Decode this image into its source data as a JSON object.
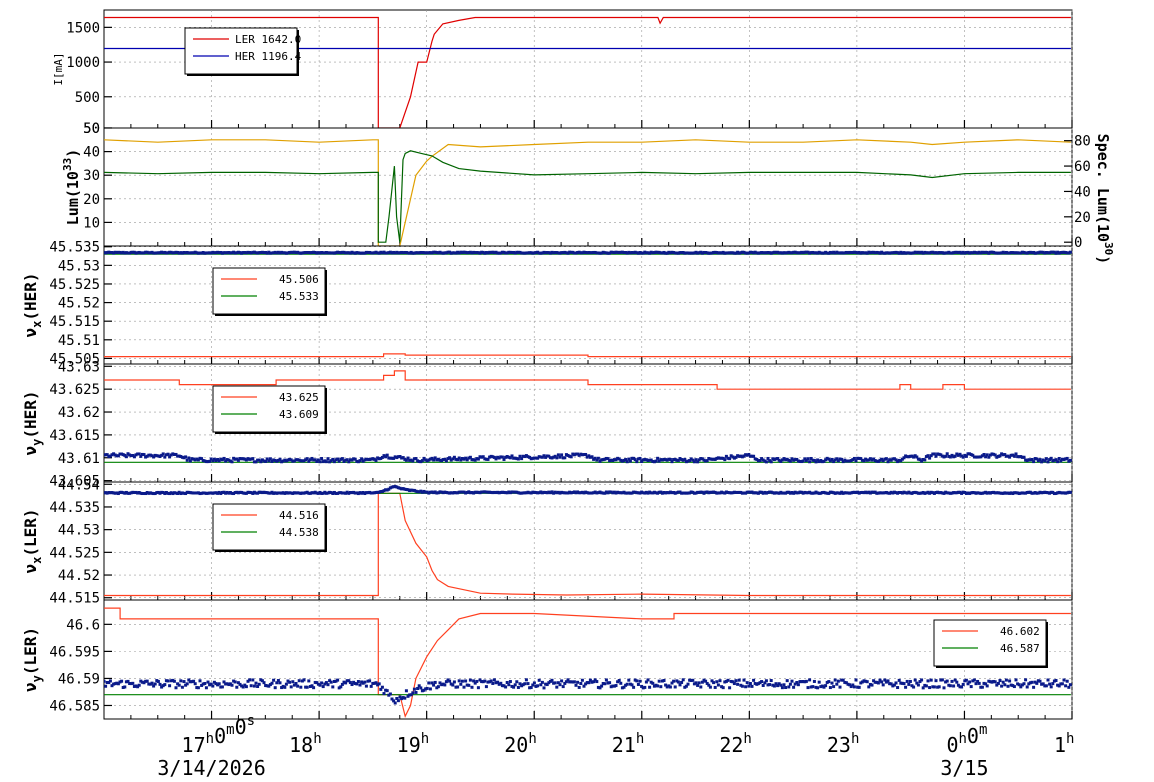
{
  "chart_data": [
    {
      "type": "line",
      "id": "current",
      "ylabel": "I[mA]",
      "ylim": [
        50,
        1750
      ],
      "yticks": [
        50,
        500,
        1000,
        1500
      ],
      "legend": {
        "position": "top-left",
        "entries": [
          {
            "name": "LER",
            "value": "1642.0",
            "color": "#e00000"
          },
          {
            "name": "HER",
            "value": "1196.4",
            "color": "#0000b0"
          }
        ]
      },
      "series": [
        {
          "name": "LER",
          "color": "#e00000",
          "x": [
            16.0,
            18.55,
            18.55,
            18.75,
            18.85,
            18.92,
            19.0,
            19.05,
            19.07,
            19.15,
            19.3,
            19.45,
            21.15,
            21.17,
            21.2,
            22.0,
            0.99
          ],
          "y": [
            1642,
            1642,
            50,
            50,
            500,
            1000,
            1000,
            1300,
            1400,
            1550,
            1600,
            1642,
            1642,
            1560,
            1642,
            1642,
            1642
          ]
        },
        {
          "name": "HER",
          "color": "#0000b0",
          "x": [
            16.0,
            0.99
          ],
          "y": [
            1196,
            1196
          ]
        }
      ]
    },
    {
      "type": "line",
      "id": "luminosity",
      "ylabel": "Lum(10",
      "ylabel_sup": "33",
      "ylabel_close": ")",
      "y2label": "Spec. Lum(10",
      "y2label_sup": "30",
      "y2label_close": ")",
      "ylim": [
        0,
        50
      ],
      "yticks": [
        10,
        20,
        30,
        40,
        50
      ],
      "y2lim": [
        -3,
        90
      ],
      "y2ticks": [
        0,
        20,
        40,
        60,
        80
      ],
      "series": [
        {
          "name": "Lum",
          "color": "#e0a000",
          "x": [
            16.0,
            16.5,
            17.0,
            17.5,
            18.0,
            18.5,
            18.55,
            18.55,
            18.75,
            18.8,
            18.9,
            19.0,
            19.05,
            19.2,
            19.5,
            20.0,
            20.5,
            21.0,
            21.5,
            22.0,
            22.5,
            23.0,
            23.5,
            23.7,
            0.0,
            0.5,
            0.99
          ],
          "y": [
            45,
            44,
            45,
            45,
            44,
            45,
            45,
            0,
            0,
            10,
            30,
            36,
            38,
            43,
            42,
            43,
            44,
            44,
            45,
            44,
            44,
            45,
            44,
            43,
            44,
            45,
            44
          ]
        },
        {
          "name": "Spec",
          "color": "#006400",
          "axis": "y2",
          "x": [
            16.0,
            16.5,
            17.0,
            17.5,
            18.0,
            18.5,
            18.55,
            18.55,
            18.62,
            18.65,
            18.7,
            18.72,
            18.75,
            18.78,
            18.8,
            18.85,
            18.95,
            19.05,
            19.15,
            19.3,
            19.5,
            20.0,
            20.5,
            21.0,
            21.5,
            22.0,
            22.5,
            23.0,
            23.5,
            23.7,
            0.0,
            0.5,
            0.99
          ],
          "y": [
            55,
            54,
            55,
            55,
            54,
            55,
            55,
            0,
            0,
            20,
            60,
            20,
            0,
            65,
            70,
            72,
            70,
            68,
            63,
            58,
            56,
            53,
            54,
            55,
            54,
            55,
            55,
            55,
            53,
            51,
            54,
            55,
            55
          ]
        }
      ]
    },
    {
      "type": "line",
      "id": "nux-her",
      "ylabel": "νx(HER)",
      "ylim": [
        45.5035,
        45.5352
      ],
      "yticks": [
        45.505,
        45.51,
        45.515,
        45.52,
        45.525,
        45.53,
        45.535
      ],
      "legend": {
        "position": "top-left",
        "entries": [
          {
            "value": "45.506",
            "color": "#ff4020"
          },
          {
            "value": "45.533",
            "color": "#008000"
          }
        ]
      },
      "series": [
        {
          "name": "set",
          "color": "#ff4020",
          "x": [
            16.0,
            18.6,
            18.6,
            18.8,
            18.8,
            20.5,
            20.5,
            0.99
          ],
          "y": [
            45.5055,
            45.5055,
            45.5062,
            45.5062,
            45.5059,
            45.5059,
            45.5055,
            45.5055
          ]
        },
        {
          "name": "ref",
          "color": "#008000",
          "x": [
            16.0,
            0.99
          ],
          "y": [
            45.533,
            45.533
          ]
        },
        {
          "name": "meas",
          "color": "#0a1a8a",
          "style": "dots",
          "noise": 0.0003,
          "x": [
            16.0,
            0.99
          ],
          "y": [
            45.5334,
            45.5334
          ]
        }
      ]
    },
    {
      "type": "line",
      "id": "nuy-her",
      "ylabel": "νy(HER)",
      "ylim": [
        43.6047,
        43.6305
      ],
      "yticks": [
        43.605,
        43.61,
        43.615,
        43.62,
        43.625,
        43.63
      ],
      "legend": {
        "position": "top-left",
        "entries": [
          {
            "value": "43.625",
            "color": "#ff4020"
          },
          {
            "value": "43.609",
            "color": "#008000"
          }
        ]
      },
      "series": [
        {
          "name": "set",
          "color": "#ff4020",
          "x": [
            16.0,
            16.7,
            16.7,
            17.6,
            17.6,
            18.6,
            18.6,
            18.7,
            18.7,
            18.8,
            18.8,
            20.5,
            20.5,
            21.7,
            21.7,
            22.0,
            22.0,
            23.4,
            23.4,
            23.5,
            23.5,
            23.6,
            23.6,
            23.8,
            23.8,
            0.0,
            0.0,
            0.99
          ],
          "y": [
            43.627,
            43.627,
            43.626,
            43.626,
            43.627,
            43.627,
            43.628,
            43.628,
            43.629,
            43.629,
            43.627,
            43.627,
            43.626,
            43.626,
            43.625,
            43.625,
            43.625,
            43.625,
            43.626,
            43.626,
            43.625,
            43.625,
            43.625,
            43.625,
            43.626,
            43.626,
            43.625,
            43.625
          ]
        },
        {
          "name": "ref",
          "color": "#008000",
          "x": [
            16.0,
            0.99
          ],
          "y": [
            43.609,
            43.609
          ]
        },
        {
          "name": "meas",
          "color": "#0a1a8a",
          "style": "dots",
          "noise": 0.0008,
          "x": [
            16.0,
            16.7,
            16.8,
            18.5,
            18.6,
            18.9,
            20.5,
            20.6,
            21.6,
            22.0,
            22.1,
            23.4,
            23.5,
            23.6,
            23.7,
            0.0,
            0.5,
            0.6,
            0.99
          ],
          "y": [
            43.6105,
            43.6105,
            43.6095,
            43.6095,
            43.6105,
            43.6095,
            43.6105,
            43.6095,
            43.6095,
            43.6105,
            43.6095,
            43.6095,
            43.6105,
            43.6095,
            43.6105,
            43.6105,
            43.6105,
            43.6095,
            43.6095
          ]
        }
      ]
    },
    {
      "type": "line",
      "id": "nux-ler",
      "ylabel": "νx(LER)",
      "ylim": [
        44.5145,
        44.5405
      ],
      "yticks": [
        44.515,
        44.52,
        44.525,
        44.53,
        44.535,
        44.54
      ],
      "legend": {
        "position": "top-left",
        "entries": [
          {
            "value": "44.516",
            "color": "#ff4020"
          },
          {
            "value": "44.538",
            "color": "#008000"
          }
        ]
      },
      "series": [
        {
          "name": "set",
          "color": "#ff4020",
          "x": [
            16.0,
            18.55,
            18.55,
            18.75,
            18.8,
            18.9,
            19.0,
            19.05,
            19.1,
            19.2,
            19.3,
            19.5,
            19.8,
            20.3,
            21.0,
            22.0,
            0.99
          ],
          "y": [
            44.5155,
            44.5155,
            44.538,
            44.538,
            44.532,
            44.527,
            44.524,
            44.521,
            44.519,
            44.5175,
            44.517,
            44.516,
            44.5158,
            44.5156,
            44.5158,
            44.5155,
            44.5155
          ]
        },
        {
          "name": "ref",
          "color": "#008000",
          "x": [
            16.0,
            0.99
          ],
          "y": [
            44.538,
            44.538
          ]
        },
        {
          "name": "meas",
          "color": "#0a1a8a",
          "style": "dots",
          "noise": 0.0003,
          "x": [
            16.0,
            18.55,
            18.7,
            18.8,
            19.0,
            0.99
          ],
          "y": [
            44.5381,
            44.5381,
            44.5395,
            44.5388,
            44.5382,
            44.5381
          ]
        }
      ]
    },
    {
      "type": "line",
      "id": "nuy-ler",
      "ylabel": "νy(LER)",
      "ylim": [
        46.5825,
        46.6045
      ],
      "yticks": [
        46.585,
        46.59,
        46.595,
        46.6
      ],
      "legend": {
        "position": "top-right",
        "entries": [
          {
            "value": "46.602",
            "color": "#ff4020"
          },
          {
            "value": "46.587",
            "color": "#008000"
          }
        ]
      },
      "series": [
        {
          "name": "set",
          "color": "#ff4020",
          "x": [
            16.0,
            16.15,
            16.15,
            18.55,
            18.55,
            18.75,
            18.8,
            18.85,
            18.9,
            19.0,
            19.1,
            19.2,
            19.3,
            19.5,
            20.0,
            21.0,
            21.3,
            21.3,
            22.5,
            22.5,
            23.9,
            23.9,
            0.99
          ],
          "y": [
            46.603,
            46.603,
            46.601,
            46.601,
            46.587,
            46.587,
            46.583,
            46.585,
            46.59,
            46.594,
            46.597,
            46.599,
            46.601,
            46.602,
            46.602,
            46.601,
            46.601,
            46.602,
            46.602,
            46.602,
            46.602,
            46.602,
            46.602
          ]
        },
        {
          "name": "ref",
          "color": "#008000",
          "x": [
            16.0,
            0.99
          ],
          "y": [
            46.587,
            46.587
          ]
        },
        {
          "name": "meas",
          "color": "#0a1a8a",
          "style": "dots",
          "noise": 0.0015,
          "x": [
            16.0,
            18.55,
            18.7,
            18.9,
            19.1,
            19.5,
            0.99
          ],
          "y": [
            46.589,
            46.589,
            46.586,
            46.588,
            46.589,
            46.589,
            46.589
          ]
        }
      ]
    }
  ],
  "time_axis": {
    "xlim": [
      16.0,
      1.0
    ],
    "ticks": [
      {
        "value": 17.0,
        "label": "17",
        "sup": "h",
        "label2": "0",
        "sup2": "m",
        "label3": "0",
        "sup3": "s"
      },
      {
        "value": 18.0,
        "label": "18",
        "sup": "h"
      },
      {
        "value": 19.0,
        "label": "19",
        "sup": "h"
      },
      {
        "value": 20.0,
        "label": "20",
        "sup": "h"
      },
      {
        "value": 21.0,
        "label": "21",
        "sup": "h"
      },
      {
        "value": 22.0,
        "label": "22",
        "sup": "h"
      },
      {
        "value": 23.0,
        "label": "23",
        "sup": "h"
      },
      {
        "value": 0.0,
        "label": "0",
        "sup": "h",
        "label2": "0",
        "sup2": "m"
      },
      {
        "value": 1.0,
        "label": "1",
        "sup": "h"
      }
    ],
    "date_labels": [
      {
        "value": 17.0,
        "text": "3/14/2026"
      },
      {
        "value": 0.0,
        "text": "3/15"
      }
    ]
  }
}
